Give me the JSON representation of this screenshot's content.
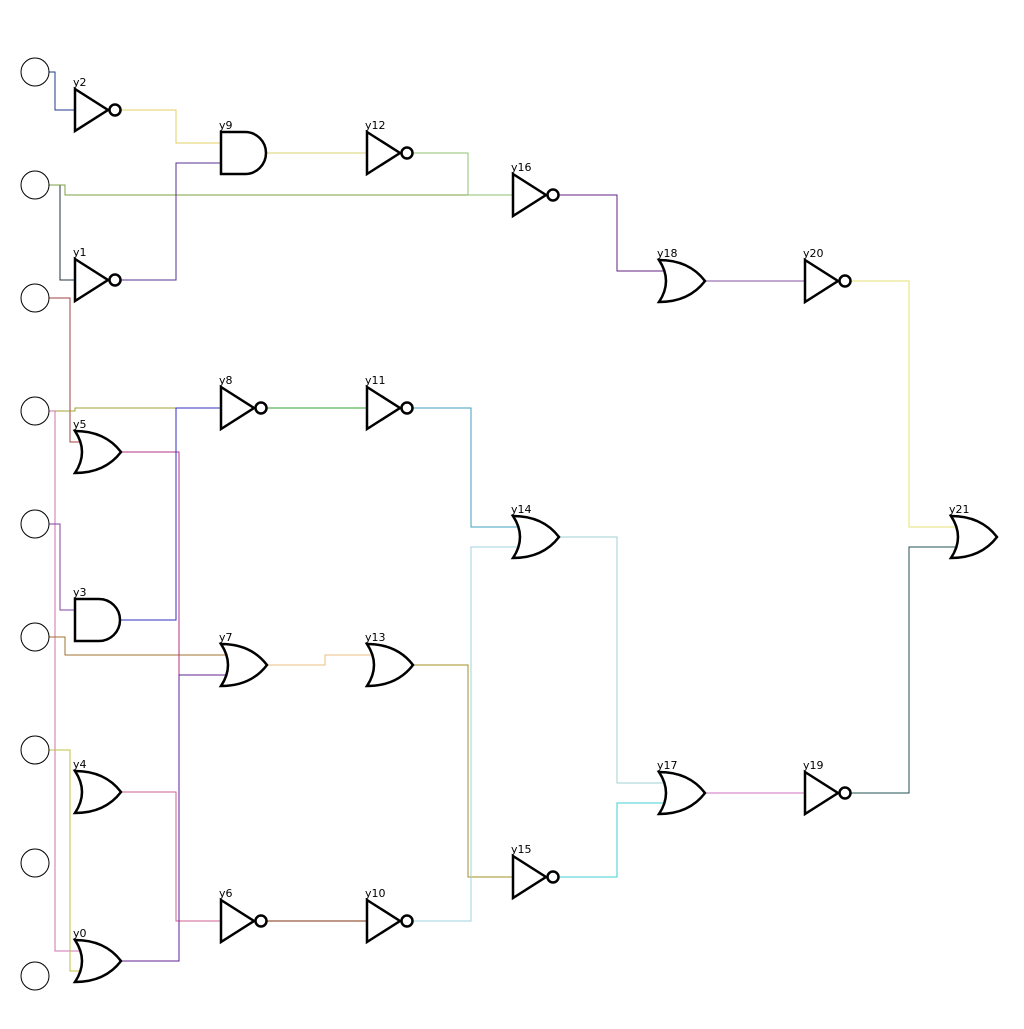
{
  "circuit": {
    "gates": [
      {
        "id": "y0",
        "type": "or"
      },
      {
        "id": "y1",
        "type": "not"
      },
      {
        "id": "y2",
        "type": "not"
      },
      {
        "id": "y3",
        "type": "and"
      },
      {
        "id": "y4",
        "type": "or"
      },
      {
        "id": "y5",
        "type": "or"
      },
      {
        "id": "y6",
        "type": "not"
      },
      {
        "id": "y7",
        "type": "or"
      },
      {
        "id": "y8",
        "type": "not"
      },
      {
        "id": "y9",
        "type": "and"
      },
      {
        "id": "y10",
        "type": "not"
      },
      {
        "id": "y11",
        "type": "not"
      },
      {
        "id": "y12",
        "type": "not"
      },
      {
        "id": "y13",
        "type": "or"
      },
      {
        "id": "y14",
        "type": "or"
      },
      {
        "id": "y15",
        "type": "not"
      },
      {
        "id": "y16",
        "type": "not"
      },
      {
        "id": "y17",
        "type": "or"
      },
      {
        "id": "y18",
        "type": "or"
      },
      {
        "id": "y19",
        "type": "not"
      },
      {
        "id": "y20",
        "type": "not"
      },
      {
        "id": "y21",
        "type": "or"
      }
    ],
    "input_count": 9,
    "wires": [
      {
        "from": "x0",
        "to": "y2",
        "color": "#1f3a8a"
      },
      {
        "from": "x1",
        "to": "y1",
        "color": "#203040"
      },
      {
        "from": "x1",
        "to": "y16",
        "color": "#7aa040"
      },
      {
        "from": "x2",
        "to": "y5",
        "color": "#a04040"
      },
      {
        "from": "x3",
        "to": "y8",
        "color": "#a0a030"
      },
      {
        "from": "x3",
        "to": "y0",
        "color": "#d070b0"
      },
      {
        "from": "x4",
        "to": "y3",
        "color": "#8040a0"
      },
      {
        "from": "x5",
        "to": "y7",
        "color": "#a07030"
      },
      {
        "from": "x6",
        "to": "y0",
        "color": "#c0c040"
      },
      {
        "from": "y2",
        "to": "y9",
        "color": "#e0d060"
      },
      {
        "from": "y1",
        "to": "y9",
        "color": "#5a3090"
      },
      {
        "from": "y9",
        "to": "y12",
        "color": "#d8d070"
      },
      {
        "from": "y12",
        "to": "y16",
        "color": "#90c070"
      },
      {
        "from": "y16",
        "to": "y18",
        "color": "#602080"
      },
      {
        "from": "y18",
        "to": "y20",
        "color": "#8050a0"
      },
      {
        "from": "y20",
        "to": "y21",
        "color": "#e0e070"
      },
      {
        "from": "y8",
        "to": "y11",
        "color": "#30a030"
      },
      {
        "from": "y11",
        "to": "y14",
        "color": "#40a0c0"
      },
      {
        "from": "y5",
        "to": "y7",
        "color": "#b03080"
      },
      {
        "from": "y3",
        "to": "y8",
        "color": "#3030c0"
      },
      {
        "from": "y7",
        "to": "y13",
        "color": "#e8c080"
      },
      {
        "from": "y13",
        "to": "y15",
        "color": "#a09020"
      },
      {
        "from": "y4",
        "to": "y6",
        "color": "#d06090"
      },
      {
        "from": "y0",
        "to": "y7",
        "color": "#602090"
      },
      {
        "from": "y6",
        "to": "y10",
        "color": "#803010"
      },
      {
        "from": "y10",
        "to": "y14",
        "color": "#a0d0e0"
      },
      {
        "from": "y14",
        "to": "y17",
        "color": "#a0d0d0"
      },
      {
        "from": "y15",
        "to": "y17",
        "color": "#40d0d0"
      },
      {
        "from": "y17",
        "to": "y19",
        "color": "#d070c0"
      },
      {
        "from": "y19",
        "to": "y21",
        "color": "#205050"
      }
    ]
  }
}
